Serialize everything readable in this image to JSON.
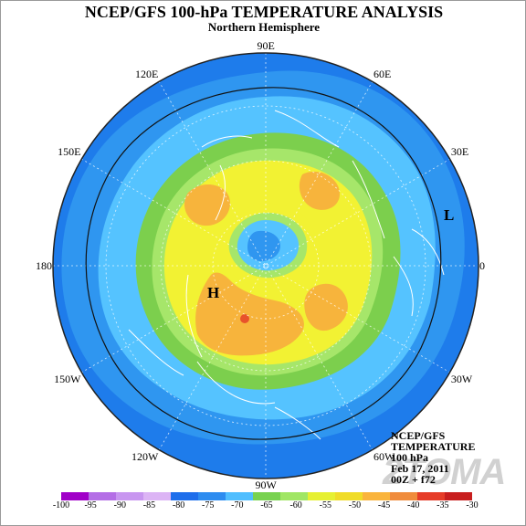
{
  "title": "NCEP/GFS 100-hPa TEMPERATURE ANALYSIS",
  "subtitle": "Northern Hemisphere",
  "longitude_labels": [
    {
      "text": "90E",
      "deg": 90
    },
    {
      "text": "60E",
      "deg": 60
    },
    {
      "text": "30E",
      "deg": 30
    },
    {
      "text": "0",
      "deg": 0
    },
    {
      "text": "30W",
      "deg": -30
    },
    {
      "text": "60W",
      "deg": -60
    },
    {
      "text": "90W",
      "deg": -90
    },
    {
      "text": "120W",
      "deg": -120
    },
    {
      "text": "150W",
      "deg": -150
    },
    {
      "text": "180",
      "deg": 180
    },
    {
      "text": "150E",
      "deg": 150
    },
    {
      "text": "120E",
      "deg": 120
    }
  ],
  "markers": {
    "high": "H",
    "low": "L"
  },
  "info": {
    "line1": "NCEP/GFS",
    "line2": "TEMPERATURE",
    "line3": "100 hPa",
    "line4": "Feb 17, 2011",
    "line5": "00Z + f72"
  },
  "watermark": "2TOMA",
  "colorbar": {
    "ticks": [
      "-100",
      "-95",
      "-90",
      "-85",
      "-80",
      "-75",
      "-70",
      "-65",
      "-60",
      "-55",
      "-50",
      "-45",
      "-40",
      "-35",
      "-30"
    ],
    "colors": [
      "#a000c8",
      "#b46ee6",
      "#c896f0",
      "#dcb4f5",
      "#1e6eeb",
      "#2d8cf0",
      "#50beff",
      "#78d250",
      "#a0e664",
      "#e6f032",
      "#f0dc28",
      "#fab43c",
      "#f08c3c",
      "#e63c28",
      "#c81e1e"
    ]
  },
  "field_colors": {
    "ocean_outer": "#1e7ceb",
    "mid_blue": "#2f96f0",
    "light_blue": "#55c3ff",
    "green": "#7ccf4d",
    "light_green": "#a6e66a",
    "yellow": "#f2f233",
    "orange": "#f7b43c",
    "red": "#e8522b",
    "land": "#ffffff"
  }
}
